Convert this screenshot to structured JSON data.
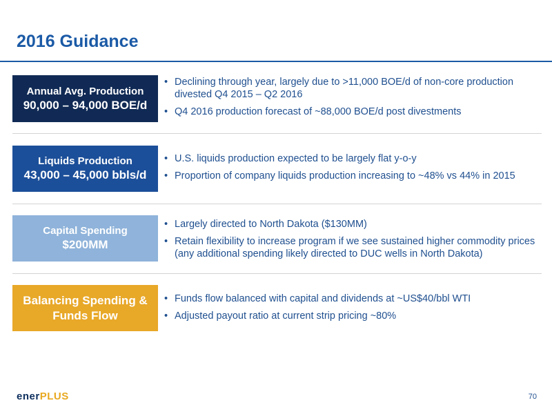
{
  "slide": {
    "title": "2016 Guidance",
    "page_number": "70"
  },
  "sections": [
    {
      "label_line1": "Annual Avg. Production",
      "label_line2": "90,000 – 94,000 BOE/d",
      "box_color": "#102a55",
      "bullets": [
        "Declining through year, largely due to >11,000 BOE/d of non-core production divested Q4 2015 – Q2 2016",
        "Q4 2016 production forecast of ~88,000 BOE/d post divestments"
      ]
    },
    {
      "label_line1": "Liquids Production",
      "label_line2": "43,000 – 45,000 bbls/d",
      "box_color": "#1c4f99",
      "bullets": [
        "U.S. liquids production expected to be largely flat y-o-y",
        "Proportion of company liquids production increasing to ~48% vs 44% in 2015"
      ]
    },
    {
      "label_line1": "Capital Spending",
      "label_line2": "$200MM",
      "box_color": "#8fb3da",
      "bullets": [
        "Largely directed to North Dakota ($130MM)",
        "Retain flexibility to increase program if we see sustained higher commodity prices (any additional spending likely directed to DUC wells in North Dakota)"
      ]
    },
    {
      "label_line1": "Balancing Spending &",
      "label_line2": "Funds Flow",
      "box_color": "#e8a828",
      "bullets": [
        "Funds flow balanced with capital and dividends at ~US$40/bbl WTI",
        "Adjusted payout ratio at current strip pricing ~80%"
      ]
    }
  ],
  "logo": {
    "part1": "ener",
    "part2": "PLUS",
    "colors": {
      "part1": "#0e2f5e",
      "part2": "#e8a820"
    }
  },
  "colors": {
    "title": "#1b5aa6",
    "bullet_text": "#1f4f8f"
  }
}
